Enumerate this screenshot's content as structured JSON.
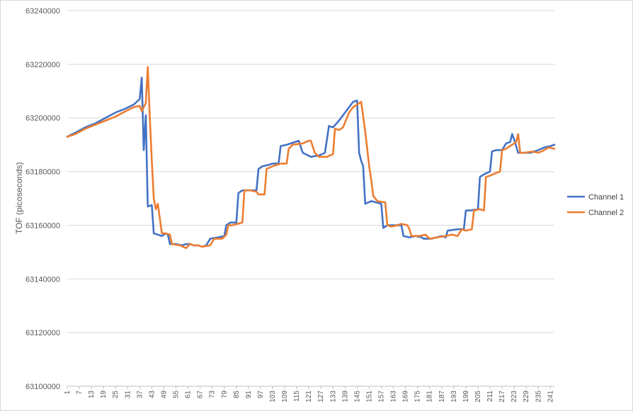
{
  "chart_data": {
    "type": "line",
    "title": "",
    "xlabel": "",
    "ylabel": "TOF (picoseconds)",
    "ylim": [
      63100000,
      63240000
    ],
    "yticks": [
      63100000,
      63120000,
      63140000,
      63160000,
      63180000,
      63200000,
      63220000,
      63240000
    ],
    "ytick_labels": [
      "63100000",
      "63120000",
      "63140000",
      "63160000",
      "63180000",
      "63200000",
      "63220000",
      "63240000"
    ],
    "xlim": [
      1,
      243
    ],
    "xticks": [
      1,
      7,
      13,
      19,
      25,
      31,
      37,
      43,
      49,
      55,
      61,
      67,
      73,
      79,
      85,
      91,
      97,
      103,
      109,
      115,
      121,
      127,
      133,
      139,
      145,
      151,
      157,
      163,
      169,
      175,
      181,
      187,
      193,
      199,
      205,
      211,
      217,
      223,
      229,
      235,
      241
    ],
    "grid": true,
    "legend": "right",
    "colors": {
      "channel1": "#4472C4",
      "channel2": "#ED7D31",
      "grid": "#d9d9d9",
      "axis": "#bfbfbf"
    },
    "series": [
      {
        "name": "Channel 1",
        "color": "#4472C4",
        "points": [
          [
            1,
            63193000
          ],
          [
            5,
            63194500
          ],
          [
            10,
            63196500
          ],
          [
            15,
            63198000
          ],
          [
            20,
            63200000
          ],
          [
            25,
            63202000
          ],
          [
            30,
            63203500
          ],
          [
            34,
            63205000
          ],
          [
            37,
            63207000
          ],
          [
            38,
            63215000
          ],
          [
            39,
            63188000
          ],
          [
            40,
            63201000
          ],
          [
            41,
            63167000
          ],
          [
            43,
            63167500
          ],
          [
            44,
            63157000
          ],
          [
            46,
            63156500
          ],
          [
            48,
            63156000
          ],
          [
            50,
            63157000
          ],
          [
            51,
            63156500
          ],
          [
            52,
            63153000
          ],
          [
            55,
            63153000
          ],
          [
            58,
            63152500
          ],
          [
            60,
            63153000
          ],
          [
            62,
            63153000
          ],
          [
            64,
            63152500
          ],
          [
            66,
            63152500
          ],
          [
            68,
            63152000
          ],
          [
            70,
            63152500
          ],
          [
            72,
            63155000
          ],
          [
            76,
            63155500
          ],
          [
            79,
            63156000
          ],
          [
            80,
            63160000
          ],
          [
            82,
            63161000
          ],
          [
            85,
            63161000
          ],
          [
            86,
            63172000
          ],
          [
            88,
            63173000
          ],
          [
            95,
            63173000
          ],
          [
            96,
            63181000
          ],
          [
            98,
            63182000
          ],
          [
            101,
            63182500
          ],
          [
            103,
            63183000
          ],
          [
            106,
            63183000
          ],
          [
            107,
            63189500
          ],
          [
            110,
            63190000
          ],
          [
            116,
            63191500
          ],
          [
            118,
            63187000
          ],
          [
            122,
            63185500
          ],
          [
            126,
            63186000
          ],
          [
            129,
            63187000
          ],
          [
            131,
            63197000
          ],
          [
            133,
            63196500
          ],
          [
            136,
            63199000
          ],
          [
            139,
            63202000
          ],
          [
            141,
            63204000
          ],
          [
            143,
            63206000
          ],
          [
            145,
            63206500
          ],
          [
            146,
            63187000
          ],
          [
            147,
            63184000
          ],
          [
            148,
            63182000
          ],
          [
            149,
            63168000
          ],
          [
            152,
            63169000
          ],
          [
            157,
            63168000
          ],
          [
            158,
            63159000
          ],
          [
            160,
            63160000
          ],
          [
            165,
            63160000
          ],
          [
            167,
            63160000
          ],
          [
            168,
            63156000
          ],
          [
            171,
            63155500
          ],
          [
            174,
            63156000
          ],
          [
            177,
            63155500
          ],
          [
            178,
            63155000
          ],
          [
            182,
            63155000
          ],
          [
            187,
            63156000
          ],
          [
            189,
            63155500
          ],
          [
            190,
            63158000
          ],
          [
            195,
            63158500
          ],
          [
            198,
            63158500
          ],
          [
            199,
            63165500
          ],
          [
            201,
            63165500
          ],
          [
            205,
            63166000
          ],
          [
            206,
            63178000
          ],
          [
            208,
            63179000
          ],
          [
            211,
            63180000
          ],
          [
            212,
            63187500
          ],
          [
            214,
            63188000
          ],
          [
            217,
            63188000
          ],
          [
            219,
            63190500
          ],
          [
            221,
            63191000
          ],
          [
            222,
            63194000
          ],
          [
            223,
            63192000
          ],
          [
            225,
            63187000
          ],
          [
            228,
            63187000
          ],
          [
            231,
            63187000
          ],
          [
            235,
            63188000
          ],
          [
            238,
            63189000
          ],
          [
            241,
            63189500
          ],
          [
            243,
            63190000
          ]
        ]
      },
      {
        "name": "Channel 2",
        "color": "#ED7D31",
        "points": [
          [
            1,
            63193000
          ],
          [
            5,
            63194000
          ],
          [
            10,
            63196000
          ],
          [
            15,
            63197500
          ],
          [
            20,
            63199000
          ],
          [
            25,
            63200500
          ],
          [
            30,
            63202500
          ],
          [
            34,
            63204000
          ],
          [
            37,
            63204500
          ],
          [
            38,
            63202500
          ],
          [
            39,
            63204000
          ],
          [
            40,
            63205500
          ],
          [
            41,
            63219000
          ],
          [
            42,
            63200000
          ],
          [
            43,
            63184000
          ],
          [
            44,
            63170000
          ],
          [
            45,
            63166000
          ],
          [
            46,
            63168000
          ],
          [
            48,
            63157000
          ],
          [
            50,
            63157000
          ],
          [
            52,
            63156500
          ],
          [
            53,
            63153000
          ],
          [
            57,
            63152500
          ],
          [
            60,
            63151500
          ],
          [
            62,
            63153000
          ],
          [
            64,
            63152500
          ],
          [
            66,
            63152500
          ],
          [
            68,
            63152000
          ],
          [
            72,
            63152500
          ],
          [
            74,
            63155000
          ],
          [
            78,
            63155000
          ],
          [
            80,
            63156500
          ],
          [
            81,
            63160000
          ],
          [
            83,
            63160000
          ],
          [
            88,
            63161000
          ],
          [
            89,
            63173000
          ],
          [
            92,
            63173000
          ],
          [
            95,
            63172500
          ],
          [
            96,
            63171500
          ],
          [
            99,
            63171500
          ],
          [
            100,
            63181000
          ],
          [
            103,
            63182000
          ],
          [
            105,
            63182500
          ],
          [
            107,
            63183000
          ],
          [
            110,
            63183000
          ],
          [
            111,
            63188500
          ],
          [
            113,
            63190000
          ],
          [
            118,
            63190500
          ],
          [
            121,
            63191500
          ],
          [
            122,
            63191500
          ],
          [
            124,
            63187000
          ],
          [
            126,
            63185500
          ],
          [
            130,
            63185500
          ],
          [
            133,
            63186500
          ],
          [
            134,
            63196000
          ],
          [
            136,
            63195500
          ],
          [
            138,
            63196500
          ],
          [
            141,
            63202000
          ],
          [
            143,
            63204000
          ],
          [
            145,
            63205000
          ],
          [
            147,
            63206000
          ],
          [
            149,
            63195000
          ],
          [
            151,
            63182000
          ],
          [
            152,
            63177000
          ],
          [
            153,
            63171000
          ],
          [
            155,
            63169000
          ],
          [
            159,
            63168500
          ],
          [
            160,
            63160000
          ],
          [
            162,
            63159500
          ],
          [
            165,
            63160000
          ],
          [
            167,
            63160500
          ],
          [
            170,
            63160000
          ],
          [
            171,
            63158500
          ],
          [
            172,
            63156000
          ],
          [
            176,
            63156000
          ],
          [
            179,
            63156500
          ],
          [
            181,
            63155000
          ],
          [
            185,
            63155500
          ],
          [
            189,
            63156000
          ],
          [
            192,
            63156500
          ],
          [
            195,
            63156000
          ],
          [
            197,
            63158500
          ],
          [
            199,
            63158000
          ],
          [
            202,
            63158500
          ],
          [
            203,
            63165500
          ],
          [
            206,
            63166000
          ],
          [
            208,
            63165500
          ],
          [
            209,
            63178000
          ],
          [
            211,
            63178500
          ],
          [
            214,
            63179500
          ],
          [
            216,
            63180000
          ],
          [
            217,
            63188000
          ],
          [
            219,
            63188500
          ],
          [
            222,
            63190000
          ],
          [
            224,
            63191000
          ],
          [
            225,
            63194000
          ],
          [
            226,
            63187000
          ],
          [
            228,
            63187000
          ],
          [
            232,
            63187500
          ],
          [
            235,
            63187000
          ],
          [
            238,
            63188000
          ],
          [
            240,
            63189000
          ],
          [
            243,
            63188500
          ]
        ]
      }
    ]
  }
}
